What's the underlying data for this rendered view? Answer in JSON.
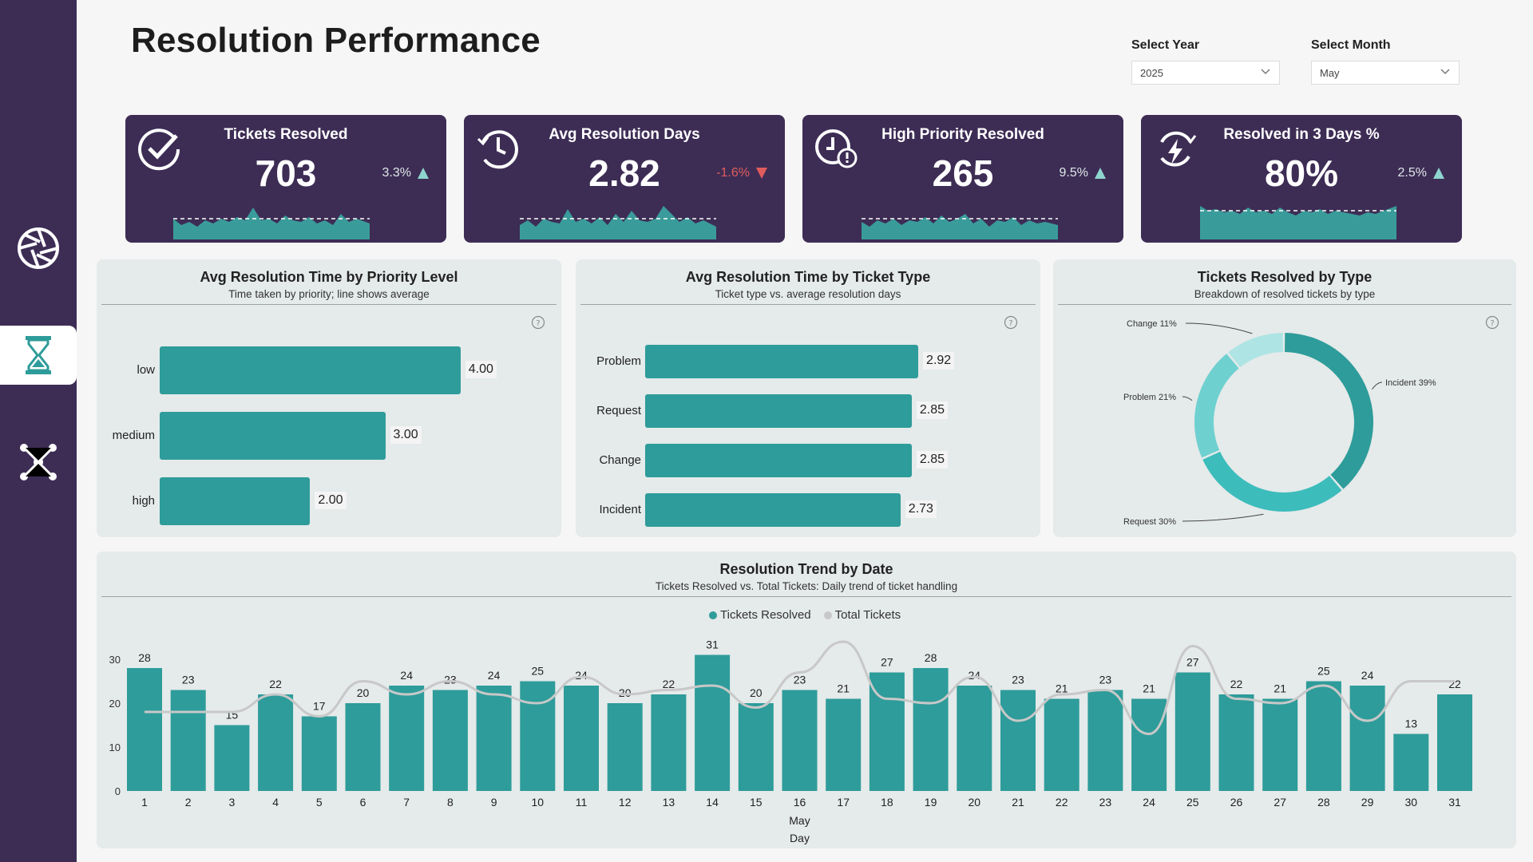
{
  "page": {
    "title": "Resolution Performance"
  },
  "filters": {
    "year": {
      "label": "Select Year",
      "value": "2025"
    },
    "month": {
      "label": "Select Month",
      "value": "May"
    }
  },
  "kpis": [
    {
      "title": "Tickets Resolved",
      "value": "703",
      "delta": "3.3%",
      "direction": "up",
      "icon": "check-circle-icon"
    },
    {
      "title": "Avg Resolution Days",
      "value": "2.82",
      "delta": "-1.6%",
      "direction": "down",
      "icon": "clock-icon"
    },
    {
      "title": "High Priority Resolved",
      "value": "265",
      "delta": "9.5%",
      "direction": "up",
      "icon": "alert-clock-icon"
    },
    {
      "title": "Resolved in 3 Days %",
      "value": "80%",
      "delta": "2.5%",
      "direction": "up",
      "icon": "rotate-bolt-icon"
    }
  ],
  "colors": {
    "sidebar": "#3d2d55",
    "bar": "#2e9c9a",
    "line": "#c8c8c8",
    "down": "#e05c5c",
    "up": "#8fd4cf"
  },
  "nav": {
    "items": [
      "aperture-icon",
      "hourglass-icon",
      "network-icon"
    ],
    "active": 1
  },
  "chart_data": [
    {
      "type": "bar",
      "orientation": "horizontal",
      "title": "Avg Resolution Time by Priority Level",
      "subtitle": "Time taken by priority; line shows average",
      "categories": [
        "low",
        "medium",
        "high"
      ],
      "values": [
        4.0,
        3.0,
        2.0
      ],
      "value_labels": [
        "4.00",
        "3.00",
        "2.00"
      ],
      "xlim": [
        0,
        5.5
      ]
    },
    {
      "type": "bar",
      "orientation": "horizontal",
      "title": "Avg Resolution Time by Ticket Type",
      "subtitle": "Ticket type vs. average resolution days",
      "categories": [
        "Problem",
        "Request",
        "Change",
        "Incident"
      ],
      "values": [
        2.92,
        2.85,
        2.85,
        2.73
      ],
      "value_labels": [
        "2.92",
        "2.85",
        "2.85",
        "2.73"
      ],
      "xlim": [
        0,
        3.5
      ]
    },
    {
      "type": "pie",
      "donut": true,
      "title": "Tickets Resolved by Type",
      "subtitle": "Breakdown of resolved tickets by type",
      "slices": [
        {
          "name": "Incident",
          "value": 39,
          "label": "Incident 39%",
          "color": "#2e9c9a"
        },
        {
          "name": "Request",
          "value": 30,
          "label": "Request 30%",
          "color": "#3dbcbc"
        },
        {
          "name": "Problem",
          "value": 21,
          "label": "Problem 21%",
          "color": "#6fd0d0"
        },
        {
          "name": "Change",
          "value": 11,
          "label": "Change 11%",
          "color": "#aee4e4"
        }
      ]
    },
    {
      "type": "bar",
      "title": "Resolution Trend by Date",
      "subtitle": "Tickets Resolved vs. Total Tickets: Daily trend of ticket handling",
      "xlabel": "Day",
      "xgroup": "May",
      "categories": [
        "1",
        "2",
        "3",
        "4",
        "5",
        "6",
        "7",
        "8",
        "9",
        "10",
        "11",
        "12",
        "13",
        "14",
        "15",
        "16",
        "17",
        "18",
        "19",
        "20",
        "21",
        "22",
        "23",
        "24",
        "25",
        "26",
        "27",
        "28",
        "29",
        "30",
        "31"
      ],
      "series": [
        {
          "name": "Tickets Resolved",
          "type": "bar",
          "values": [
            28,
            23,
            15,
            22,
            17,
            20,
            24,
            23,
            24,
            25,
            24,
            20,
            22,
            31,
            20,
            23,
            21,
            27,
            28,
            24,
            23,
            21,
            23,
            21,
            27,
            22,
            21,
            25,
            24,
            13,
            22
          ]
        },
        {
          "name": "Total Tickets",
          "type": "line",
          "values": [
            18,
            18,
            18,
            22,
            17,
            25,
            22,
            25,
            22,
            20,
            26,
            22,
            23,
            24,
            19,
            27,
            34,
            21,
            20,
            26,
            16,
            22,
            23,
            13,
            33,
            21,
            20,
            24,
            16,
            25,
            25
          ]
        }
      ],
      "yticks": [
        "0",
        "10",
        "20",
        "30"
      ],
      "ylim": [
        0,
        35
      ],
      "legend": "top-center"
    }
  ]
}
